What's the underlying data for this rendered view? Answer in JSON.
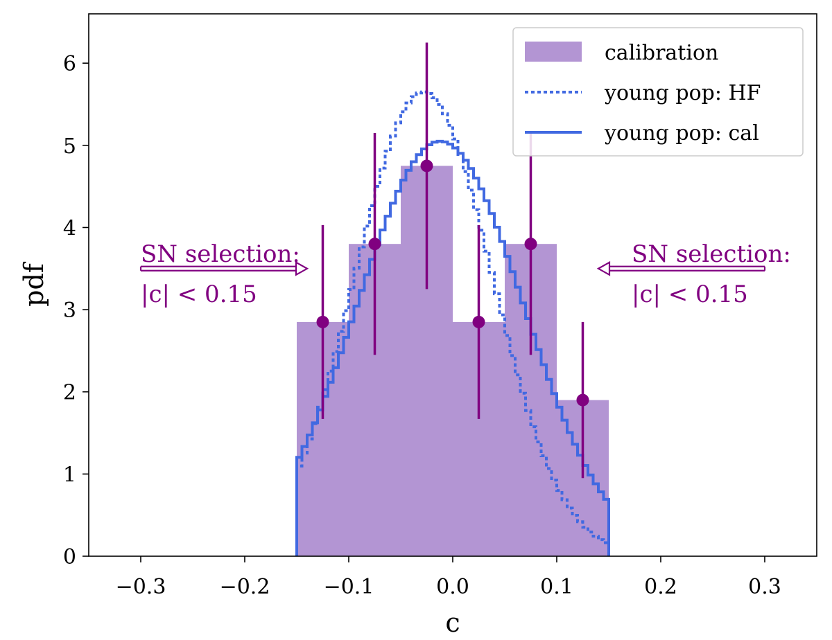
{
  "chart_data": {
    "type": "bar",
    "title": "",
    "xlabel": "c",
    "ylabel": "pdf",
    "xlim": [
      -0.35,
      0.35
    ],
    "ylim": [
      0,
      6.6
    ],
    "xticks": [
      -0.3,
      -0.2,
      -0.1,
      0.0,
      0.1,
      0.2,
      0.3
    ],
    "xtick_labels": [
      "−0.3",
      "−0.2",
      "−0.1",
      "0.0",
      "0.1",
      "0.2",
      "0.3"
    ],
    "yticks": [
      0,
      1,
      2,
      3,
      4,
      5,
      6
    ],
    "ytick_labels": [
      "0",
      "1",
      "2",
      "3",
      "4",
      "5",
      "6"
    ],
    "grid": false,
    "legend": {
      "position": "top-right",
      "entries": [
        {
          "label": "calibration",
          "style": "patch",
          "color": "#b395d3"
        },
        {
          "label": "young pop: HF",
          "style": "dotted",
          "color": "#4169e1"
        },
        {
          "label": "young pop: cal",
          "style": "solid",
          "color": "#4169e1"
        }
      ]
    },
    "calibration_histogram": {
      "name": "calibration",
      "color": "#b395d3",
      "bin_edges": [
        -0.15,
        -0.1,
        -0.05,
        0.0,
        0.05,
        0.1,
        0.15
      ],
      "values": [
        2.85,
        3.8,
        4.75,
        2.85,
        3.8,
        1.9
      ]
    },
    "error_points": {
      "color": "#800080",
      "x": [
        -0.125,
        -0.075,
        -0.025,
        0.025,
        0.075,
        0.125
      ],
      "y": [
        2.85,
        3.8,
        4.75,
        2.85,
        3.8,
        1.9
      ],
      "yerr": [
        1.18,
        1.35,
        1.5,
        1.18,
        1.35,
        0.95
      ]
    },
    "series": [
      {
        "name": "young pop: HF",
        "style": "dotted-step",
        "color": "#4169e1",
        "mean": -0.028,
        "sigma": 0.066,
        "peak": 5.65,
        "range": [
          -0.15,
          0.15
        ]
      },
      {
        "name": "young pop: cal",
        "style": "solid-step",
        "color": "#4169e1",
        "mean": -0.012,
        "sigma": 0.08,
        "peak": 5.05,
        "range": [
          -0.15,
          0.15
        ]
      }
    ],
    "annotations": [
      {
        "id": "left",
        "line1": "SN selection:",
        "line2": "|c| < 0.15",
        "direction": "right",
        "arrow_from": -0.3,
        "arrow_to": -0.14,
        "y": 3.5,
        "color": "#800080"
      },
      {
        "id": "right",
        "line1": "SN selection:",
        "line2": "|c| < 0.15",
        "direction": "left",
        "arrow_from": 0.3,
        "arrow_to": 0.14,
        "y": 3.5,
        "color": "#800080"
      }
    ]
  }
}
